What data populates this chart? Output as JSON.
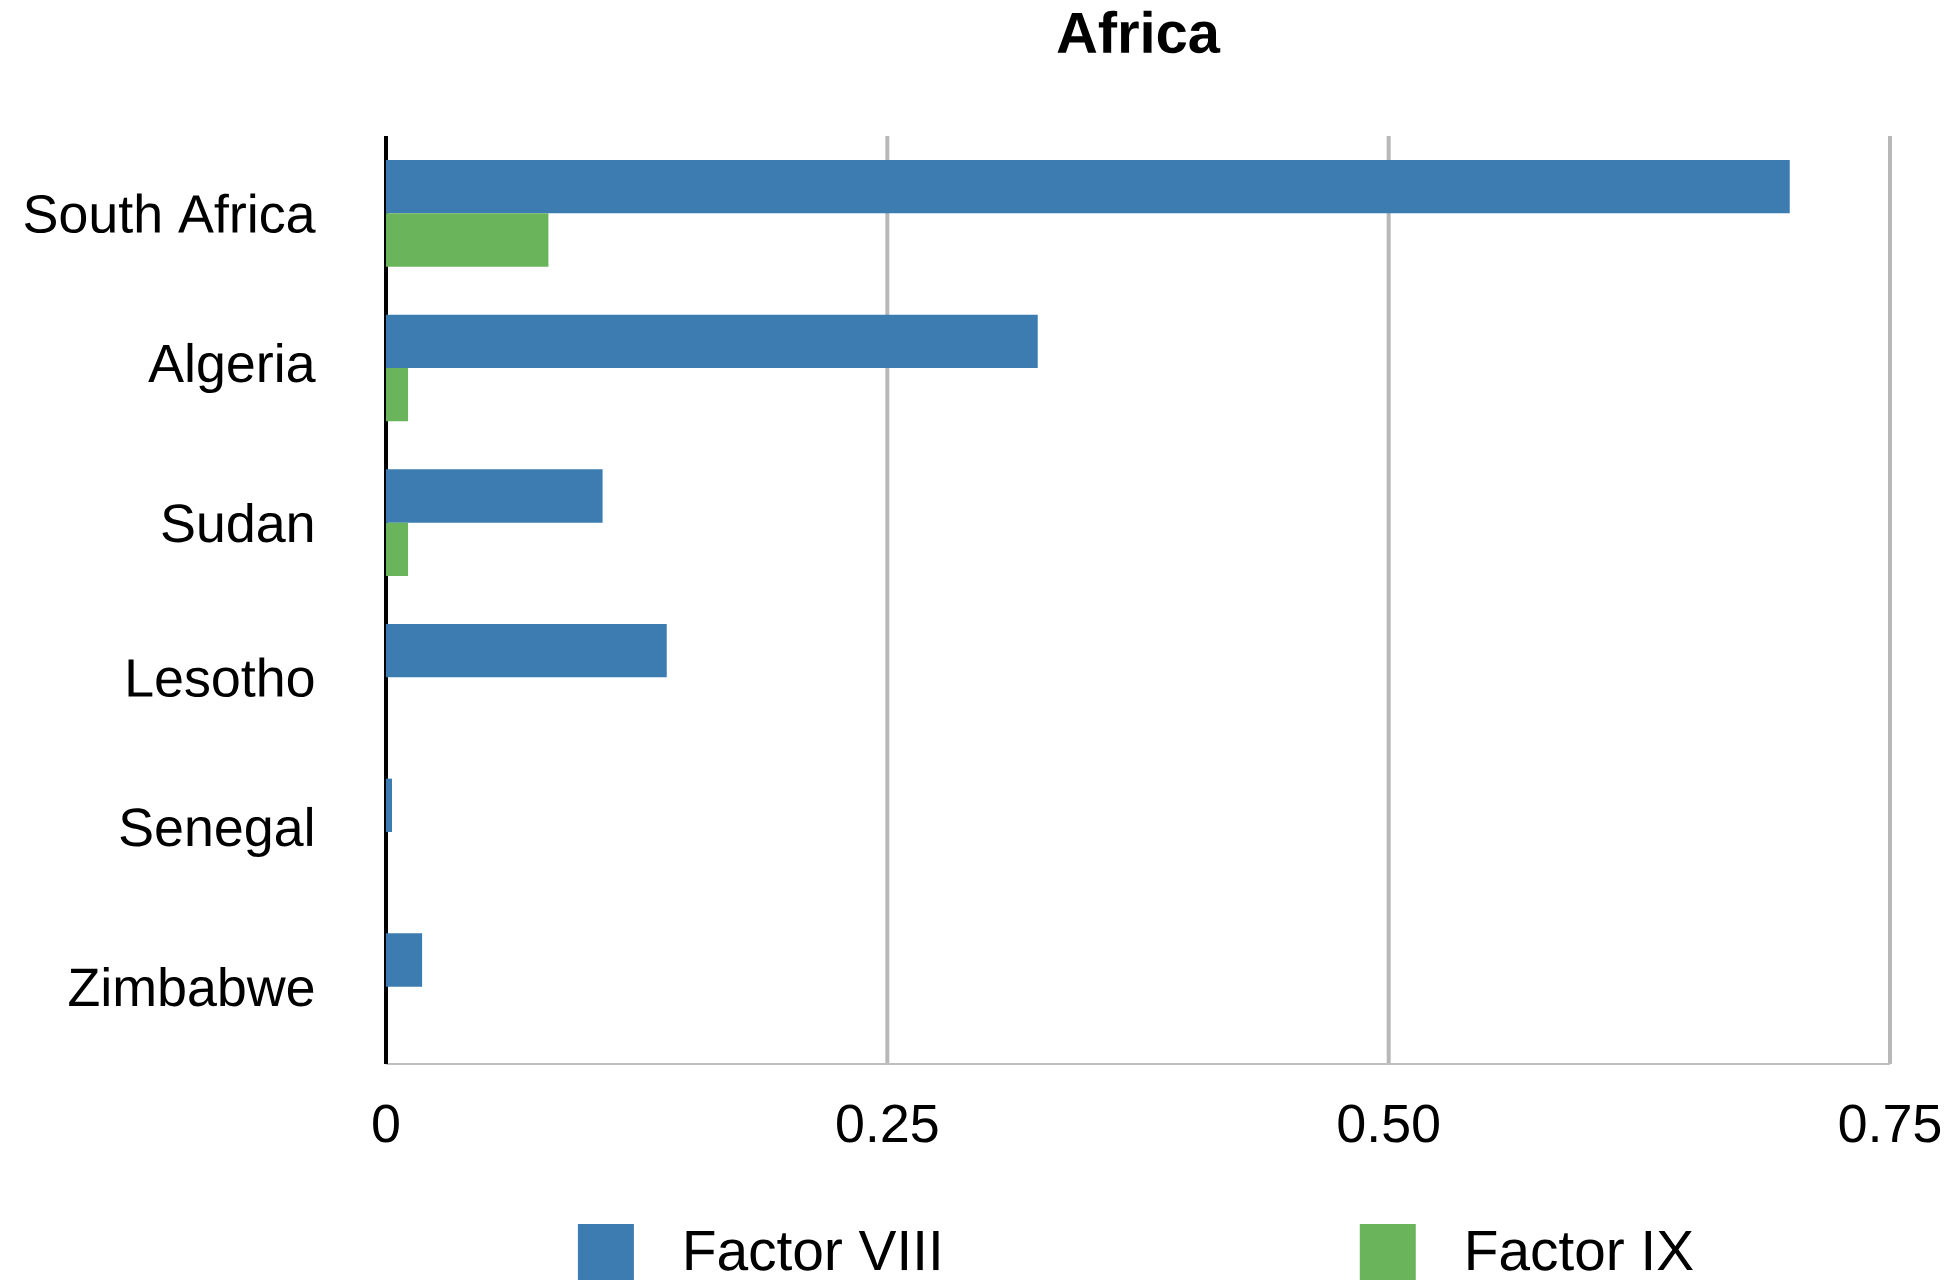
{
  "chart_data": {
    "type": "bar",
    "orientation": "horizontal",
    "title": "Africa",
    "categories": [
      "South Africa",
      "Algeria",
      "Sudan",
      "Lesotho",
      "Senegal",
      "Zimbabwe"
    ],
    "series": [
      {
        "name": "Factor VIII",
        "color": "#3d7cb1",
        "values": [
          0.7,
          0.325,
          0.108,
          0.14,
          0.003,
          0.018
        ]
      },
      {
        "name": "Factor IX",
        "color": "#6ab55c",
        "values": [
          0.081,
          0.011,
          0.011,
          null,
          null,
          null
        ]
      }
    ],
    "xlim": [
      0,
      0.75
    ],
    "xticks": [
      0,
      0.25,
      {
        "value": 0.5,
        "label": "0.50"
      },
      0.75
    ],
    "grid": "x",
    "legend": "bottom"
  }
}
